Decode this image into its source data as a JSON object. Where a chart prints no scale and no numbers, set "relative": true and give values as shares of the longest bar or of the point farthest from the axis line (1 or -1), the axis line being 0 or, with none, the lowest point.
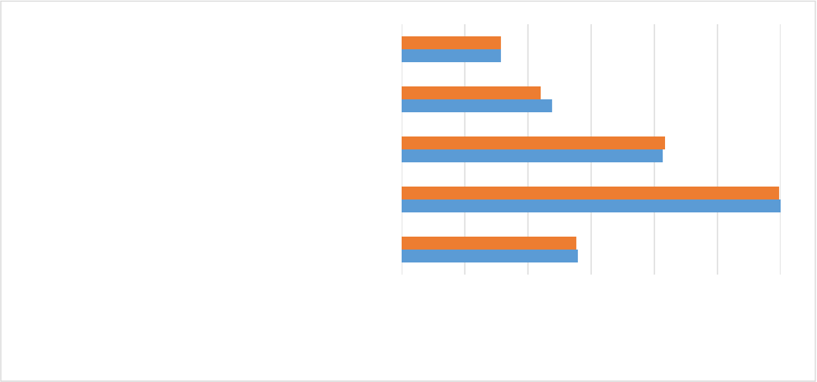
{
  "chart_data": {
    "type": "bar",
    "orientation": "horizontal",
    "relative": true,
    "grid": "x",
    "legend": false,
    "categories": [
      null,
      null,
      null,
      null,
      null
    ],
    "series": [
      {
        "color": "#5b9bd5",
        "values": [
          0.262,
          0.397,
          0.689,
          1,
          0.465
        ]
      },
      {
        "color": "#ed7d31",
        "values": [
          0.262,
          0.367,
          0.695,
          0.996,
          0.461
        ]
      }
    ]
  }
}
